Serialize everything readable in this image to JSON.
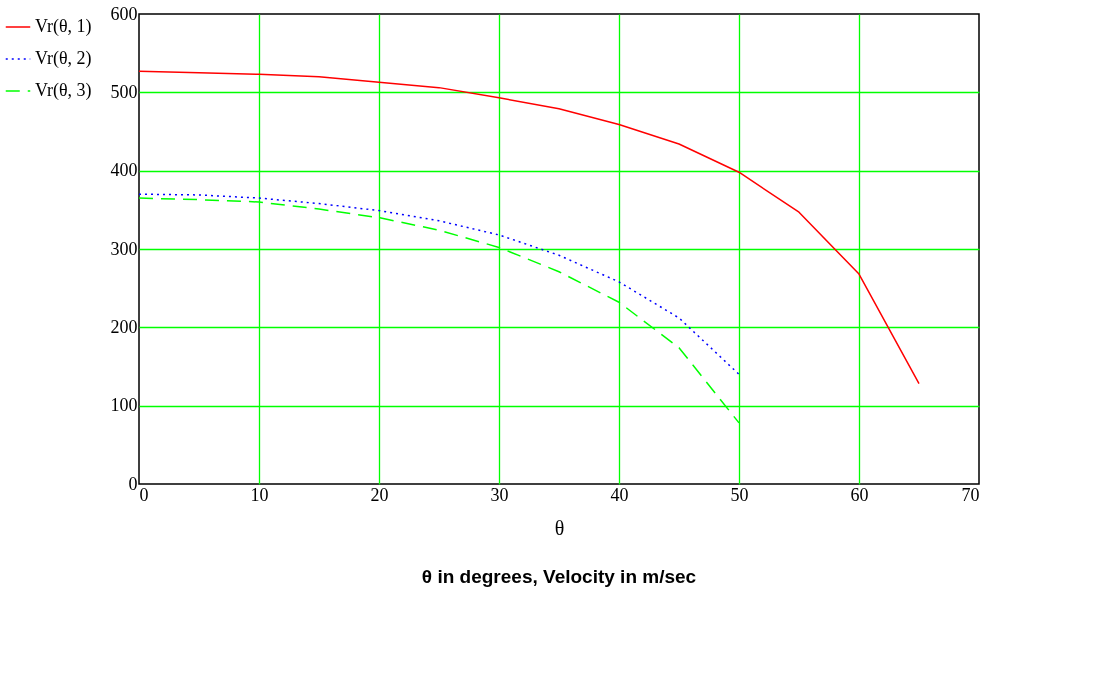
{
  "chart_data": {
    "type": "line",
    "xlabel": "θ",
    "annotations": [
      "θ  in degrees, Velocity in m/sec"
    ],
    "xlim": [
      0,
      70
    ],
    "xticks": [
      0,
      10,
      20,
      30,
      40,
      50,
      60,
      70
    ],
    "ylim": [
      0,
      600
    ],
    "yticks": [
      0,
      100,
      200,
      300,
      400,
      500,
      600
    ],
    "grid": true,
    "legend": "left",
    "marker": "none",
    "series": [
      {
        "name": "Vr(θ, 1)",
        "color": "#ff0000",
        "line_style": "solid",
        "x": [
          0,
          5,
          10,
          15,
          20,
          25,
          30,
          35,
          40,
          45,
          50,
          55,
          60,
          65
        ],
        "values": [
          527,
          525,
          523,
          520,
          513,
          506,
          493,
          479,
          459,
          434,
          398,
          347,
          268,
          128
        ]
      },
      {
        "name": "Vr(θ, 2)",
        "color": "#0000ff",
        "line_style": "dotted",
        "x": [
          0,
          5,
          10,
          15,
          20,
          25,
          30,
          35,
          40,
          45,
          50
        ],
        "values": [
          370,
          369,
          365,
          358,
          349,
          336,
          318,
          292,
          258,
          212,
          140
        ]
      },
      {
        "name": "Vr(θ, 3)",
        "color": "#00ff00",
        "line_style": "dashed",
        "x": [
          0,
          5,
          10,
          15,
          20,
          25,
          30,
          35,
          40,
          45,
          50
        ],
        "values": [
          365,
          363,
          360,
          351,
          340,
          324,
          302,
          271,
          232,
          174,
          78
        ]
      }
    ]
  }
}
